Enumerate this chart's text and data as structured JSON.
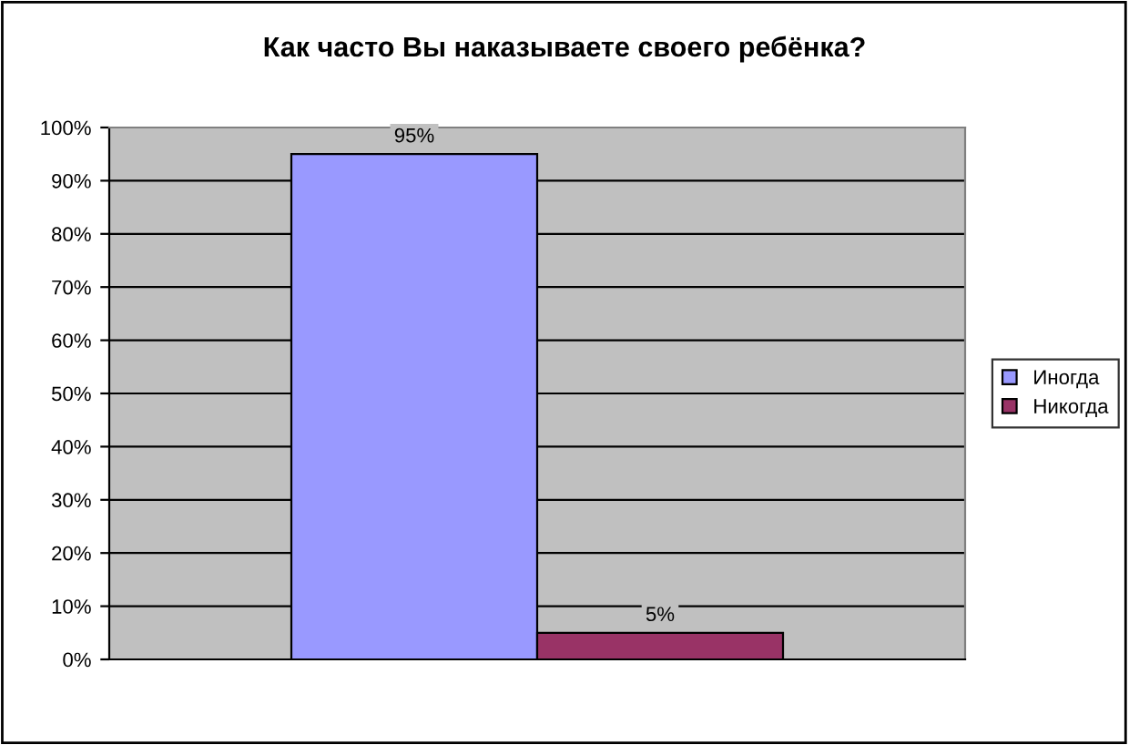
{
  "chart_data": {
    "type": "bar",
    "title": "Как часто Вы наказываете своего ребёнка?",
    "categories": [
      null
    ],
    "series": [
      {
        "name": "Иногда",
        "color": "#9999ff",
        "values": [
          95
        ],
        "value_labels": [
          "95%"
        ]
      },
      {
        "name": "Никогда",
        "color": "#993366",
        "values": [
          5
        ],
        "value_labels": [
          "5%"
        ]
      }
    ],
    "ylim": [
      0,
      100
    ],
    "yticks": [
      {
        "value": 0,
        "label": "0%"
      },
      {
        "value": 10,
        "label": "10%"
      },
      {
        "value": 20,
        "label": "20%"
      },
      {
        "value": 30,
        "label": "30%"
      },
      {
        "value": 40,
        "label": "40%"
      },
      {
        "value": 50,
        "label": "50%"
      },
      {
        "value": 60,
        "label": "60%"
      },
      {
        "value": 70,
        "label": "70%"
      },
      {
        "value": 80,
        "label": "80%"
      },
      {
        "value": 90,
        "label": "90%"
      },
      {
        "value": 100,
        "label": "100%"
      }
    ],
    "grid": "y",
    "legend": "right"
  }
}
